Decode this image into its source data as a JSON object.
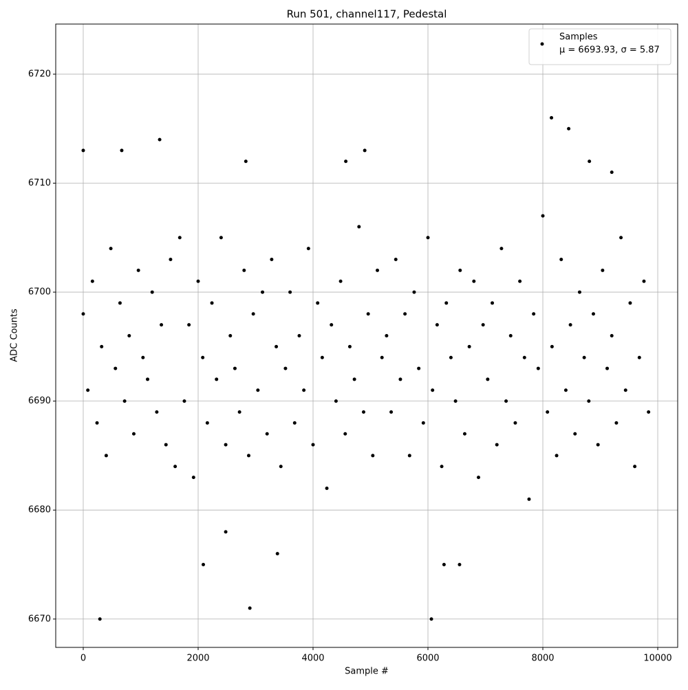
{
  "chart_data": {
    "type": "scatter",
    "title": "Run 501, channel117, Pedestal",
    "x_label": "Sample #",
    "y_label": "ADC Counts",
    "xlim": [
      -479,
      10347
    ],
    "ylim": [
      6667.4,
      6724.6
    ],
    "xticks": [
      0,
      2000,
      4000,
      6000,
      8000,
      10000
    ],
    "yticks": [
      6670,
      6680,
      6690,
      6700,
      6710,
      6720
    ],
    "grid": true,
    "legend": "upper right",
    "legend_note": "μ = 6693.93, σ = 5.87",
    "series": [
      {
        "name": "Samples",
        "color": "#000000",
        "x": [
          0,
          80,
          160,
          240,
          320,
          400,
          480,
          560,
          640,
          720,
          800,
          880,
          960,
          1040,
          1120,
          1200,
          1280,
          1360,
          1440,
          1520,
          1600,
          1680,
          1760,
          1840,
          1920,
          2000,
          2080,
          2160,
          2240,
          2320,
          2400,
          2480,
          2560,
          2640,
          2720,
          2800,
          2880,
          2960,
          3040,
          3120,
          3200,
          3280,
          3360,
          3440,
          3520,
          3600,
          3680,
          3760,
          3840,
          3920,
          4000,
          4080,
          4160,
          4240,
          4320,
          4400,
          4480,
          4560,
          4640,
          4720,
          4800,
          4880,
          4960,
          5040,
          5120,
          5200,
          5280,
          5360,
          5440,
          5520,
          5600,
          5680,
          5760,
          5840,
          5920,
          6000,
          6080,
          6160,
          6240,
          6320,
          6400,
          6480,
          6560,
          6640,
          6720,
          6800,
          6880,
          6960,
          7040,
          7120,
          7200,
          7280,
          7360,
          7440,
          7520,
          7600,
          7680,
          7760,
          7840,
          7920,
          8000,
          8080,
          8160,
          8240,
          8320,
          8400,
          8480,
          8560,
          8640,
          8720,
          8800,
          8880,
          8960,
          9040,
          9120,
          9200,
          9280,
          9360,
          9440,
          9520,
          9600,
          9680,
          9760,
          9840,
          0,
          670,
          1330,
          2090,
          2830,
          2900,
          290,
          4900,
          6060,
          6280,
          6550,
          8150,
          8450,
          9200,
          8810,
          4570,
          3380,
          2480
        ],
        "values": [
          6698,
          6691,
          6701,
          6688,
          6695,
          6685,
          6704,
          6693,
          6699,
          6690,
          6696,
          6687,
          6702,
          6694,
          6692,
          6700,
          6689,
          6697,
          6686,
          6703,
          6684,
          6705,
          6690,
          6697,
          6683,
          6701,
          6694,
          6688,
          6699,
          6692,
          6705,
          6686,
          6696,
          6693,
          6689,
          6702,
          6685,
          6698,
          6691,
          6700,
          6687,
          6703,
          6695,
          6684,
          6693,
          6700,
          6688,
          6696,
          6691,
          6704,
          6686,
          6699,
          6694,
          6682,
          6697,
          6690,
          6701,
          6687,
          6695,
          6692,
          6706,
          6689,
          6698,
          6685,
          6702,
          6694,
          6696,
          6689,
          6703,
          6692,
          6698,
          6685,
          6700,
          6693,
          6688,
          6705,
          6691,
          6697,
          6684,
          6699,
          6694,
          6690,
          6702,
          6687,
          6695,
          6701,
          6683,
          6697,
          6692,
          6699,
          6686,
          6704,
          6690,
          6696,
          6688,
          6701,
          6694,
          6681,
          6698,
          6693,
          6707,
          6689,
          6695,
          6685,
          6703,
          6691,
          6697,
          6687,
          6700,
          6694,
          6690,
          6698,
          6686,
          6702,
          6693,
          6696,
          6688,
          6705,
          6691,
          6699,
          6684,
          6694,
          6701,
          6689,
          6713,
          6713,
          6714,
          6675,
          6712,
          6671,
          6670,
          6713,
          6670,
          6675,
          6675,
          6716,
          6715,
          6711,
          6712,
          6712,
          6676,
          6678
        ]
      }
    ]
  }
}
